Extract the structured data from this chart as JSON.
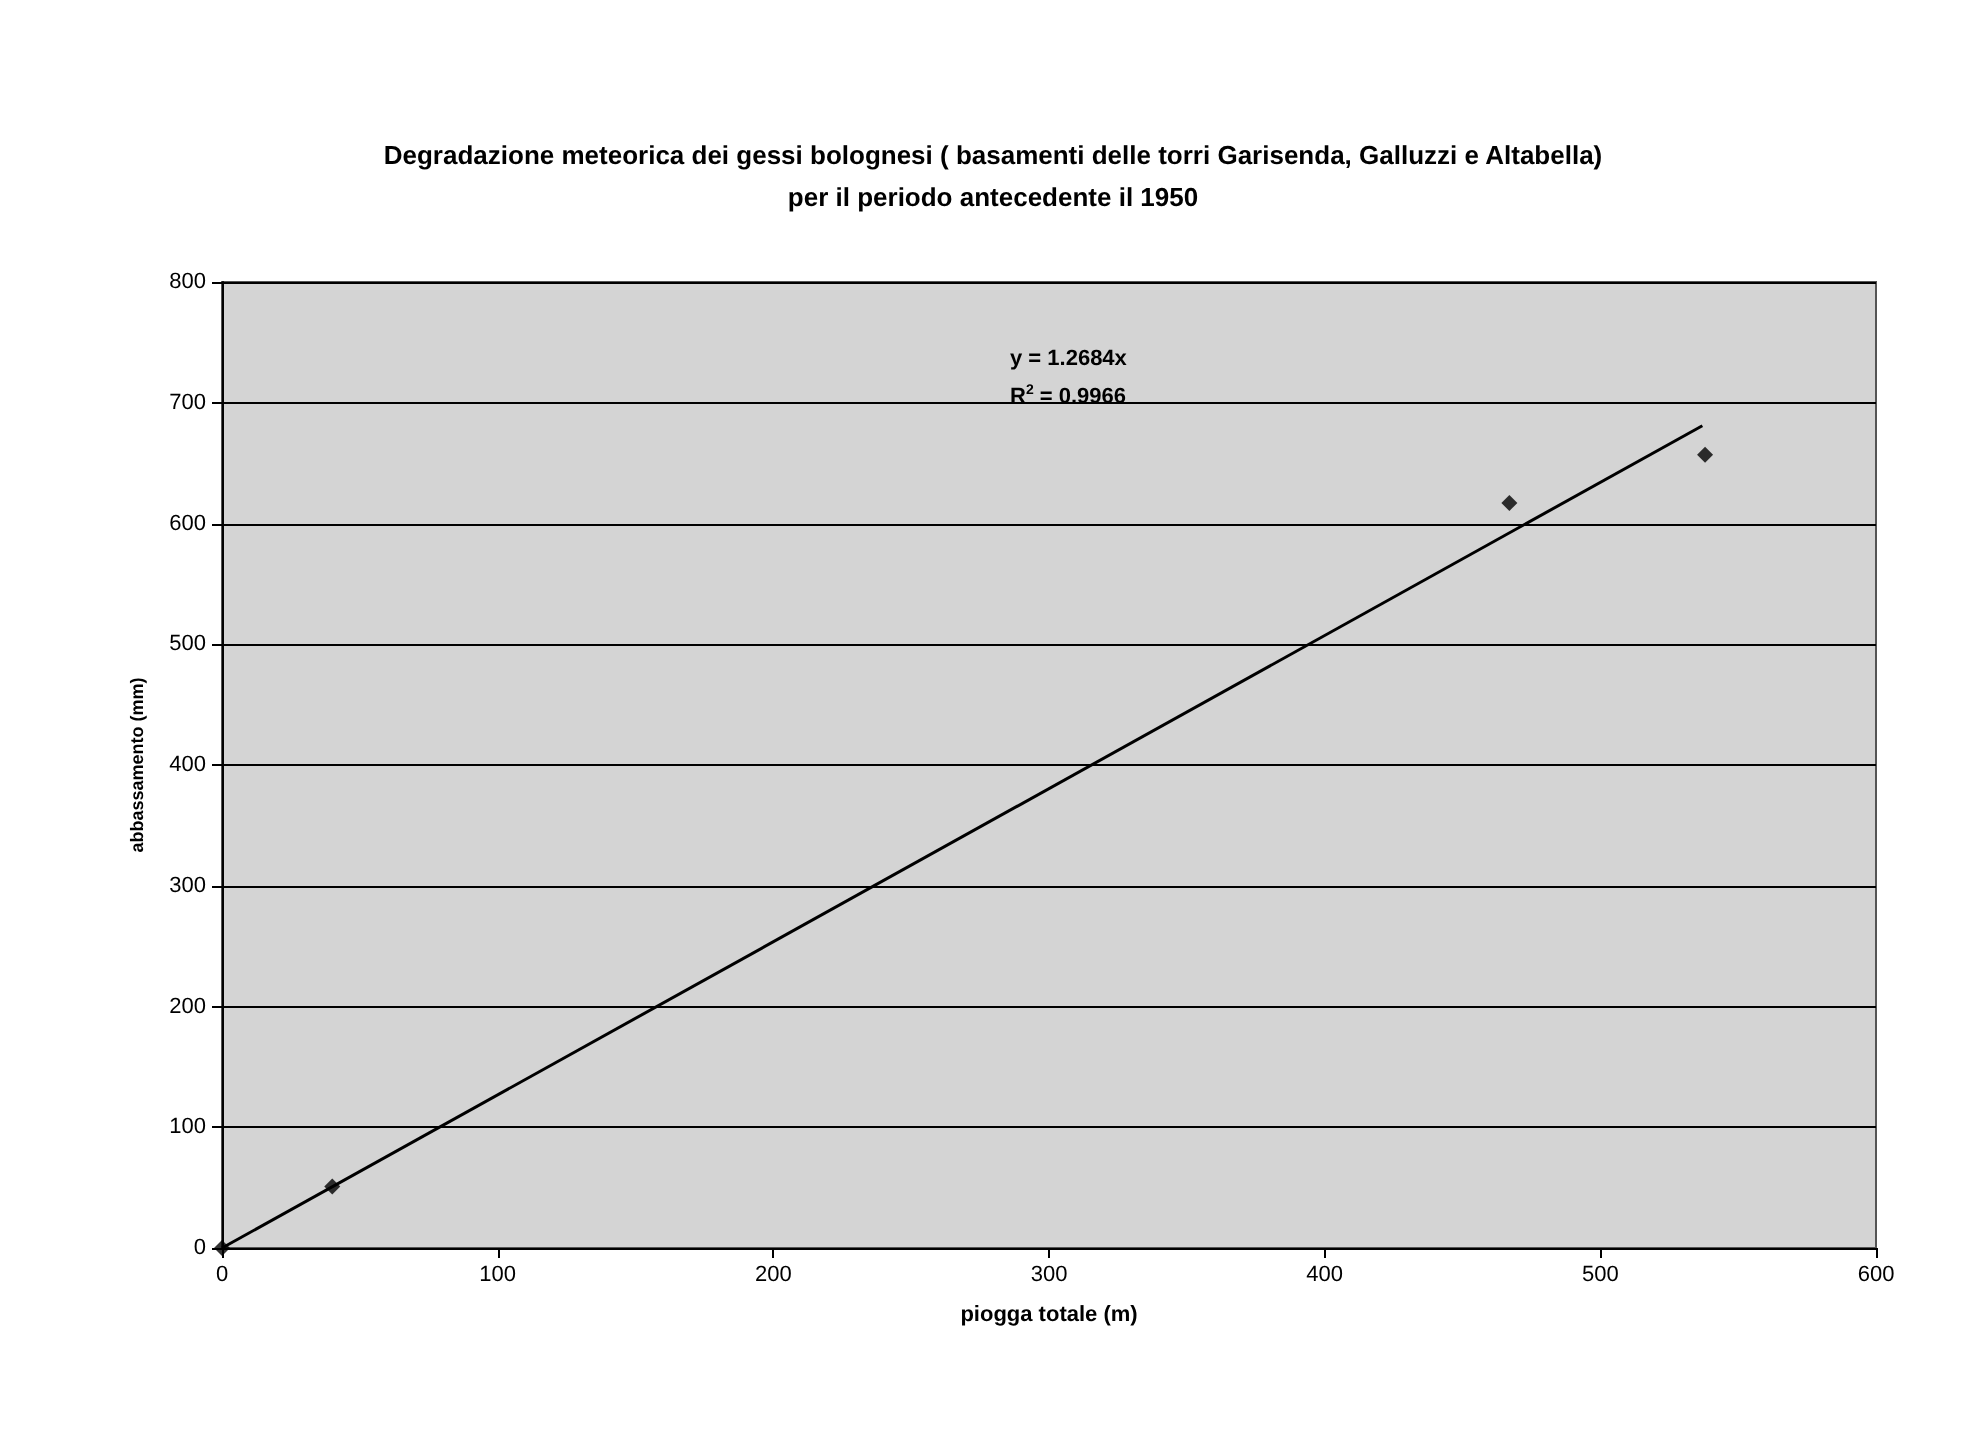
{
  "chart_data": {
    "type": "scatter",
    "title": "Degradazione meteorica dei gessi bolognesi ( basamenti delle torri Garisenda, Galluzzi e Altabella)\nper il periodo antecedente il 1950",
    "xlabel": "piogga totale (m)",
    "ylabel": "abbassamento (mm)",
    "annotations": [
      "y = 1.2684x",
      "R$^{2}$ = 0.9966"
    ],
    "series": [
      {
        "color": "#000000",
        "x": [
          0,
          40,
          467,
          538
        ],
        "values": [
          0,
          51,
          617,
          657
        ],
        "marker": "diamond"
      },
      {
        "type": "line",
        "color": "#000000",
        "x": [
          0,
          537
        ],
        "values": [
          0,
          681
        ],
        "marker": "none",
        "line_style": "solid"
      }
    ],
    "xlim": [
      0,
      600
    ],
    "xticks": [
      0,
      100,
      200,
      300,
      400,
      500,
      600
    ],
    "ylim": [
      0,
      800
    ],
    "yticks": [
      0,
      100,
      200,
      300,
      400,
      500,
      600,
      700,
      800
    ],
    "grid": "y"
  }
}
